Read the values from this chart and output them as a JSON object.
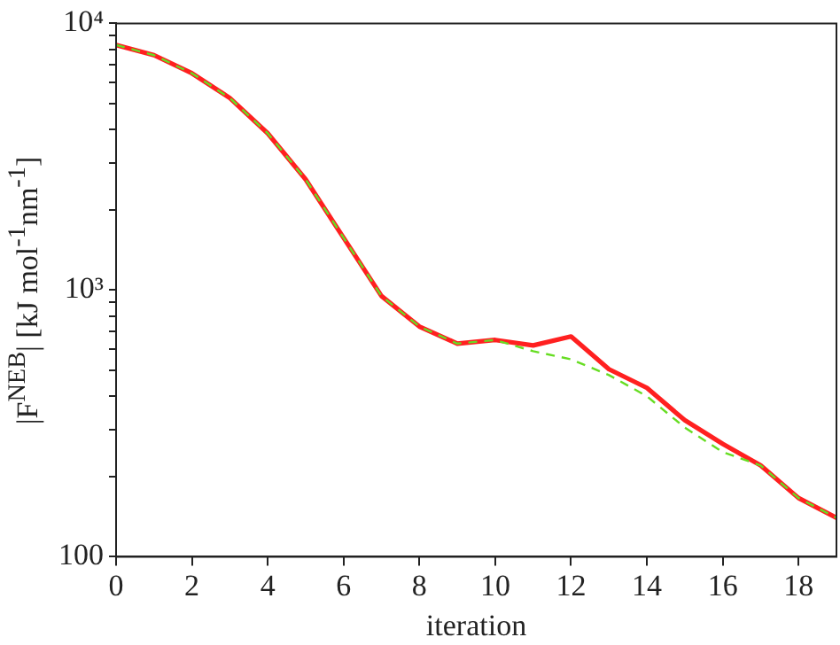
{
  "chart_data": {
    "type": "line",
    "xlabel": "iteration",
    "ylabel": "|F$^{NEB}$| [kJ mol$^{-1}$nm$^{-1}$]",
    "x": [
      0,
      1,
      2,
      3,
      4,
      5,
      6,
      7,
      8,
      9,
      10,
      11,
      12,
      13,
      14,
      15,
      16,
      17,
      18,
      19
    ],
    "series": [
      {
        "color": "#ff2020",
        "line_style": "solid",
        "values": [
          8300,
          7600,
          6500,
          5250,
          3870,
          2600,
          1570,
          950,
          730,
          630,
          650,
          620,
          670,
          505,
          430,
          325,
          265,
          220,
          166,
          140
        ]
      },
      {
        "color": "#66dd22",
        "line_style": "dashed",
        "values": [
          8300,
          7600,
          6500,
          5250,
          3870,
          2600,
          1570,
          950,
          730,
          630,
          650,
          590,
          550,
          480,
          400,
          305,
          247,
          220,
          166,
          140
        ]
      }
    ],
    "log": "y",
    "xlim": [
      0,
      19
    ],
    "xticks": [
      0,
      2,
      4,
      6,
      8,
      10,
      12,
      14,
      16,
      18
    ],
    "ylim": [
      100,
      10000
    ],
    "yticks": [
      100,
      {
        "value": 200,
        "label": null
      },
      {
        "value": 300,
        "label": null
      },
      {
        "value": 400,
        "label": null
      },
      {
        "value": 500,
        "label": null
      },
      {
        "value": 600,
        "label": null
      },
      {
        "value": 700,
        "label": null
      },
      {
        "value": 800,
        "label": null
      },
      {
        "value": 900,
        "label": null
      },
      {
        "value": 1000,
        "label": "10³"
      },
      {
        "value": 2000,
        "label": null
      },
      {
        "value": 3000,
        "label": null
      },
      {
        "value": 4000,
        "label": null
      },
      {
        "value": 5000,
        "label": null
      },
      {
        "value": 6000,
        "label": null
      },
      {
        "value": 7000,
        "label": null
      },
      {
        "value": 8000,
        "label": null
      },
      {
        "value": 9000,
        "label": null
      },
      {
        "value": 10000,
        "label": "10⁴"
      }
    ],
    "grid": false,
    "legend": false,
    "marker": "none"
  }
}
